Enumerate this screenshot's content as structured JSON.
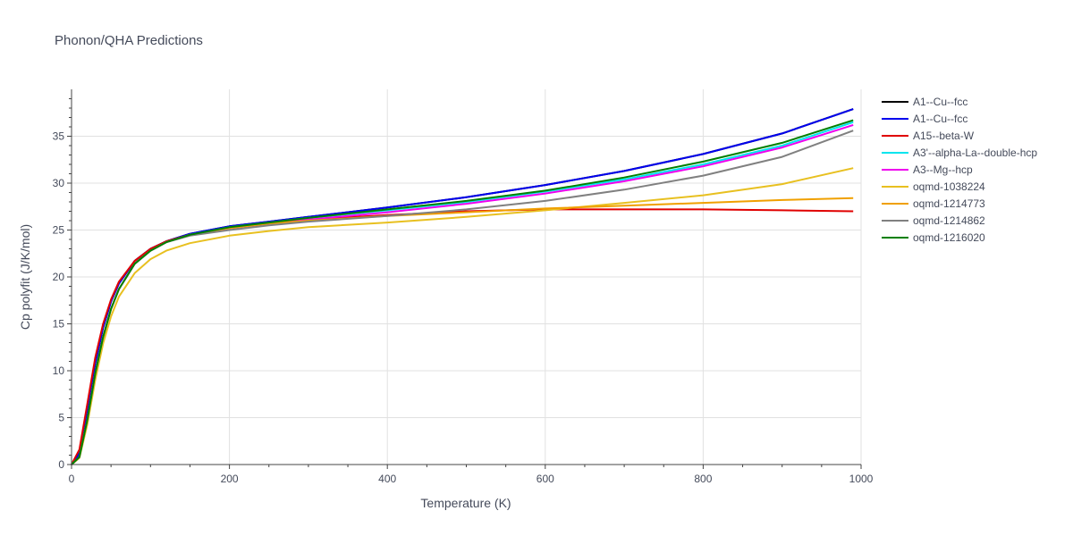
{
  "chart_data": {
    "type": "line",
    "title": "Phonon/QHA Predictions",
    "xlabel": "Temperature (K)",
    "ylabel": "Cp polyfit (J/K/mol)",
    "xlim": [
      0,
      1000
    ],
    "ylim": [
      0,
      40
    ],
    "xticks": [
      "0",
      "200",
      "400",
      "600",
      "800",
      "1000"
    ],
    "yticks": [
      "0",
      "5",
      "10",
      "15",
      "20",
      "25",
      "30",
      "35"
    ],
    "grid": true,
    "legend_position": "right",
    "x": [
      0,
      10,
      20,
      30,
      40,
      50,
      60,
      80,
      100,
      120,
      150,
      200,
      250,
      300,
      400,
      500,
      600,
      700,
      800,
      900,
      990
    ],
    "series": [
      {
        "name": "A1--Cu--fcc",
        "color": "#000000",
        "values": [
          0,
          1.2,
          5.8,
          10.8,
          14.6,
          17.4,
          19.3,
          21.7,
          23.0,
          23.8,
          24.6,
          25.4,
          25.9,
          26.4,
          27.4,
          28.5,
          29.8,
          31.3,
          33.1,
          35.3,
          37.9
        ]
      },
      {
        "name": "A1--Cu--fcc",
        "color": "#0000ee",
        "values": [
          0,
          1.2,
          5.8,
          10.8,
          14.6,
          17.4,
          19.3,
          21.7,
          23.0,
          23.8,
          24.6,
          25.4,
          25.9,
          26.4,
          27.4,
          28.5,
          29.8,
          31.3,
          33.1,
          35.3,
          37.9
        ]
      },
      {
        "name": "A15--beta-W",
        "color": "#e00000",
        "values": [
          0,
          1.6,
          6.5,
          11.4,
          15.0,
          17.6,
          19.5,
          21.7,
          23.0,
          23.8,
          24.5,
          25.2,
          25.7,
          26.1,
          26.6,
          27.0,
          27.2,
          27.2,
          27.2,
          27.1,
          27.0
        ]
      },
      {
        "name": "A3'--alpha-La--double-hcp",
        "color": "#00e5ee",
        "values": [
          0,
          0.8,
          4.8,
          9.7,
          13.6,
          16.6,
          18.7,
          21.4,
          22.8,
          23.7,
          24.5,
          25.3,
          25.8,
          26.3,
          27.1,
          28.0,
          29.1,
          30.4,
          32.0,
          34.0,
          36.5
        ]
      },
      {
        "name": "A3--Mg--hcp",
        "color": "#ee00ee",
        "values": [
          0,
          0.8,
          4.8,
          9.7,
          13.6,
          16.6,
          18.7,
          21.4,
          22.8,
          23.7,
          24.5,
          25.2,
          25.7,
          26.1,
          26.9,
          27.8,
          28.9,
          30.2,
          31.8,
          33.8,
          36.2
        ]
      },
      {
        "name": "oqmd-1038224",
        "color": "#e8c020",
        "values": [
          0,
          0.7,
          4.3,
          9.0,
          12.9,
          15.8,
          17.9,
          20.4,
          21.9,
          22.8,
          23.6,
          24.4,
          24.9,
          25.3,
          25.8,
          26.4,
          27.1,
          27.9,
          28.7,
          29.9,
          31.6
        ]
      },
      {
        "name": "oqmd-1214773",
        "color": "#f0a000",
        "values": [
          0,
          0.8,
          4.8,
          9.7,
          13.6,
          16.6,
          18.7,
          21.4,
          22.8,
          23.7,
          24.5,
          25.2,
          25.7,
          26.0,
          26.5,
          26.9,
          27.3,
          27.6,
          27.9,
          28.2,
          28.4
        ]
      },
      {
        "name": "oqmd-1214862",
        "color": "#808080",
        "values": [
          0,
          0.8,
          4.8,
          9.7,
          13.6,
          16.6,
          18.7,
          21.4,
          22.8,
          23.7,
          24.4,
          25.0,
          25.5,
          25.9,
          26.5,
          27.2,
          28.1,
          29.3,
          30.8,
          32.8,
          35.6
        ]
      },
      {
        "name": "oqmd-1216020",
        "color": "#008000",
        "values": [
          0,
          0.8,
          4.8,
          9.7,
          13.6,
          16.6,
          18.7,
          21.4,
          22.8,
          23.7,
          24.5,
          25.3,
          25.8,
          26.3,
          27.2,
          28.1,
          29.2,
          30.6,
          32.3,
          34.3,
          36.7
        ]
      }
    ]
  }
}
